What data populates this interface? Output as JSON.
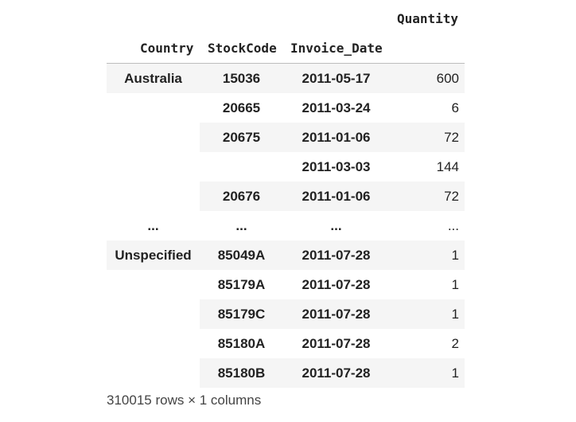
{
  "columns": {
    "value": "Quantity",
    "index": [
      "Country",
      "StockCode",
      "Invoice_Date"
    ]
  },
  "rows": [
    {
      "country": "Australia",
      "stock": "15036",
      "date": "2011-05-17",
      "qty": "600",
      "shaded": true
    },
    {
      "country": "",
      "stock": "20665",
      "date": "2011-03-24",
      "qty": "6",
      "shaded": false
    },
    {
      "country": "",
      "stock": "20675",
      "date": "2011-01-06",
      "qty": "72",
      "shaded": true
    },
    {
      "country": "",
      "stock": "",
      "date": "2011-03-03",
      "qty": "144",
      "shaded": false
    },
    {
      "country": "",
      "stock": "20676",
      "date": "2011-01-06",
      "qty": "72",
      "shaded": true
    },
    {
      "country": "...",
      "stock": "...",
      "date": "...",
      "qty": "...",
      "shaded": false
    },
    {
      "country": "Unspecified",
      "stock": "85049A",
      "date": "2011-07-28",
      "qty": "1",
      "shaded": true
    },
    {
      "country": "",
      "stock": "85179A",
      "date": "2011-07-28",
      "qty": "1",
      "shaded": false
    },
    {
      "country": "",
      "stock": "85179C",
      "date": "2011-07-28",
      "qty": "1",
      "shaded": true
    },
    {
      "country": "",
      "stock": "85180A",
      "date": "2011-07-28",
      "qty": "2",
      "shaded": false
    },
    {
      "country": "",
      "stock": "85180B",
      "date": "2011-07-28",
      "qty": "1",
      "shaded": true
    }
  ],
  "footer": "310015 rows × 1 columns"
}
